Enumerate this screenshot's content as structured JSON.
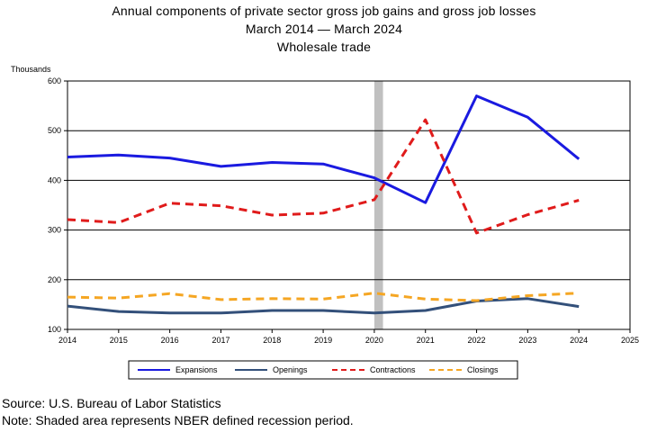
{
  "title_lines": [
    "Annual components of private sector gross job gains and gross job losses",
    "March 2014 — March 2024",
    "Wholesale trade"
  ],
  "footer": {
    "source": "Source: U.S. Bureau of Labor Statistics",
    "note": "Note: Shaded area represents NBER defined recession period."
  },
  "chart_data": {
    "type": "line",
    "ylabel": "Thousands",
    "xlabel": "",
    "xlim": [
      2014,
      2025
    ],
    "ylim": [
      100,
      600
    ],
    "x_ticks": [
      2014,
      2015,
      2016,
      2017,
      2018,
      2019,
      2020,
      2021,
      2022,
      2023,
      2024,
      2025
    ],
    "y_ticks": [
      100,
      200,
      300,
      400,
      500,
      600
    ],
    "grid": "horizontal",
    "recession": {
      "start": 2020.0,
      "end": 2020.17,
      "color": "#c0c0c0"
    },
    "x": [
      2014,
      2015,
      2016,
      2017,
      2018,
      2019,
      2020,
      2021,
      2022,
      2023,
      2024
    ],
    "series": [
      {
        "name": "Expansions",
        "color": "#1a1ae0",
        "dash": "solid",
        "values": [
          447,
          451,
          445,
          428,
          436,
          433,
          405,
          355,
          570,
          527,
          443
        ]
      },
      {
        "name": "Openings",
        "color": "#33507a",
        "dash": "solid",
        "values": [
          147,
          136,
          133,
          133,
          138,
          138,
          133,
          138,
          157,
          162,
          146
        ]
      },
      {
        "name": "Contractions",
        "color": "#e01b1b",
        "dash": "dashed",
        "values": [
          321,
          315,
          354,
          349,
          330,
          334,
          361,
          522,
          294,
          331,
          360
        ]
      },
      {
        "name": "Closings",
        "color": "#f5a623",
        "dash": "dashed",
        "values": [
          165,
          163,
          172,
          160,
          162,
          161,
          173,
          161,
          158,
          168,
          173
        ]
      }
    ],
    "legend_position": "bottom"
  }
}
